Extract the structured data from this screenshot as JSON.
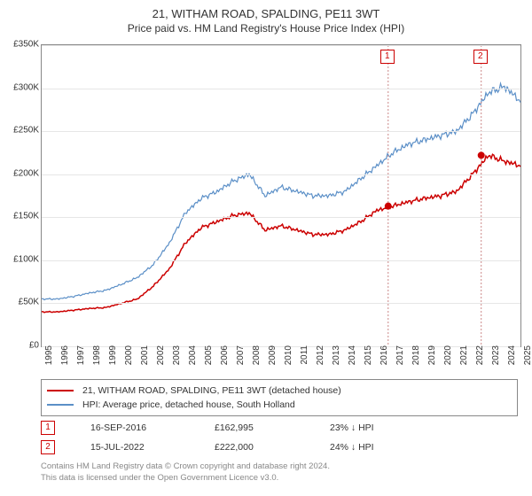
{
  "title": "21, WITHAM ROAD, SPALDING, PE11 3WT",
  "subtitle": "Price paid vs. HM Land Registry's House Price Index (HPI)",
  "chart": {
    "type": "line",
    "x_start_year": 1995,
    "x_end_year": 2025,
    "y_min": 0,
    "y_max": 350000,
    "y_tick_step": 50000,
    "y_tick_labels": [
      "£0",
      "£50K",
      "£100K",
      "£150K",
      "£200K",
      "£250K",
      "£300K",
      "£350K"
    ],
    "x_tick_labels": [
      "1995",
      "1996",
      "1997",
      "1998",
      "1999",
      "2000",
      "2001",
      "2002",
      "2003",
      "2004",
      "2005",
      "2006",
      "2007",
      "2008",
      "2009",
      "2010",
      "2011",
      "2012",
      "2013",
      "2014",
      "2015",
      "2016",
      "2017",
      "2018",
      "2019",
      "2020",
      "2021",
      "2022",
      "2023",
      "2024",
      "2025"
    ],
    "grid_color": "#e6e6e6",
    "background_color": "#ffffff",
    "series": [
      {
        "name": "property",
        "label": "21, WITHAM ROAD, SPALDING, PE11 3WT (detached house)",
        "color": "#cc0000",
        "stroke_width": 1.5,
        "values": [
          40000,
          40000,
          42000,
          44000,
          45000,
          50000,
          55000,
          70000,
          90000,
          120000,
          138000,
          145000,
          152000,
          155000,
          135000,
          140000,
          135000,
          130000,
          130000,
          135000,
          145000,
          158000,
          163000,
          168000,
          172000,
          175000,
          180000,
          200000,
          222000,
          215000,
          210000
        ]
      },
      {
        "name": "hpi",
        "label": "HPI: Average price, detached house, South Holland",
        "color": "#5b8fc7",
        "stroke_width": 1.2,
        "values": [
          55000,
          55000,
          58000,
          62000,
          65000,
          72000,
          80000,
          95000,
          120000,
          155000,
          172000,
          180000,
          192000,
          200000,
          175000,
          185000,
          180000,
          175000,
          175000,
          180000,
          195000,
          210000,
          225000,
          235000,
          240000,
          245000,
          250000,
          270000,
          295000,
          302000,
          285000
        ]
      }
    ],
    "sale_markers": [
      {
        "label": "1",
        "year_frac": 2016.71,
        "value": 162995
      },
      {
        "label": "2",
        "year_frac": 2022.54,
        "value": 222000
      }
    ]
  },
  "legend": [
    {
      "color": "#cc0000",
      "text": "21, WITHAM ROAD, SPALDING, PE11 3WT (detached house)"
    },
    {
      "color": "#5b8fc7",
      "text": "HPI: Average price, detached house, South Holland"
    }
  ],
  "data_rows": [
    {
      "marker": "1",
      "date": "16-SEP-2016",
      "price": "£162,995",
      "delta": "23% ↓ HPI"
    },
    {
      "marker": "2",
      "date": "15-JUL-2022",
      "price": "£222,000",
      "delta": "24% ↓ HPI"
    }
  ],
  "footer_line1": "Contains HM Land Registry data © Crown copyright and database right 2024.",
  "footer_line2": "This data is licensed under the Open Government Licence v3.0."
}
